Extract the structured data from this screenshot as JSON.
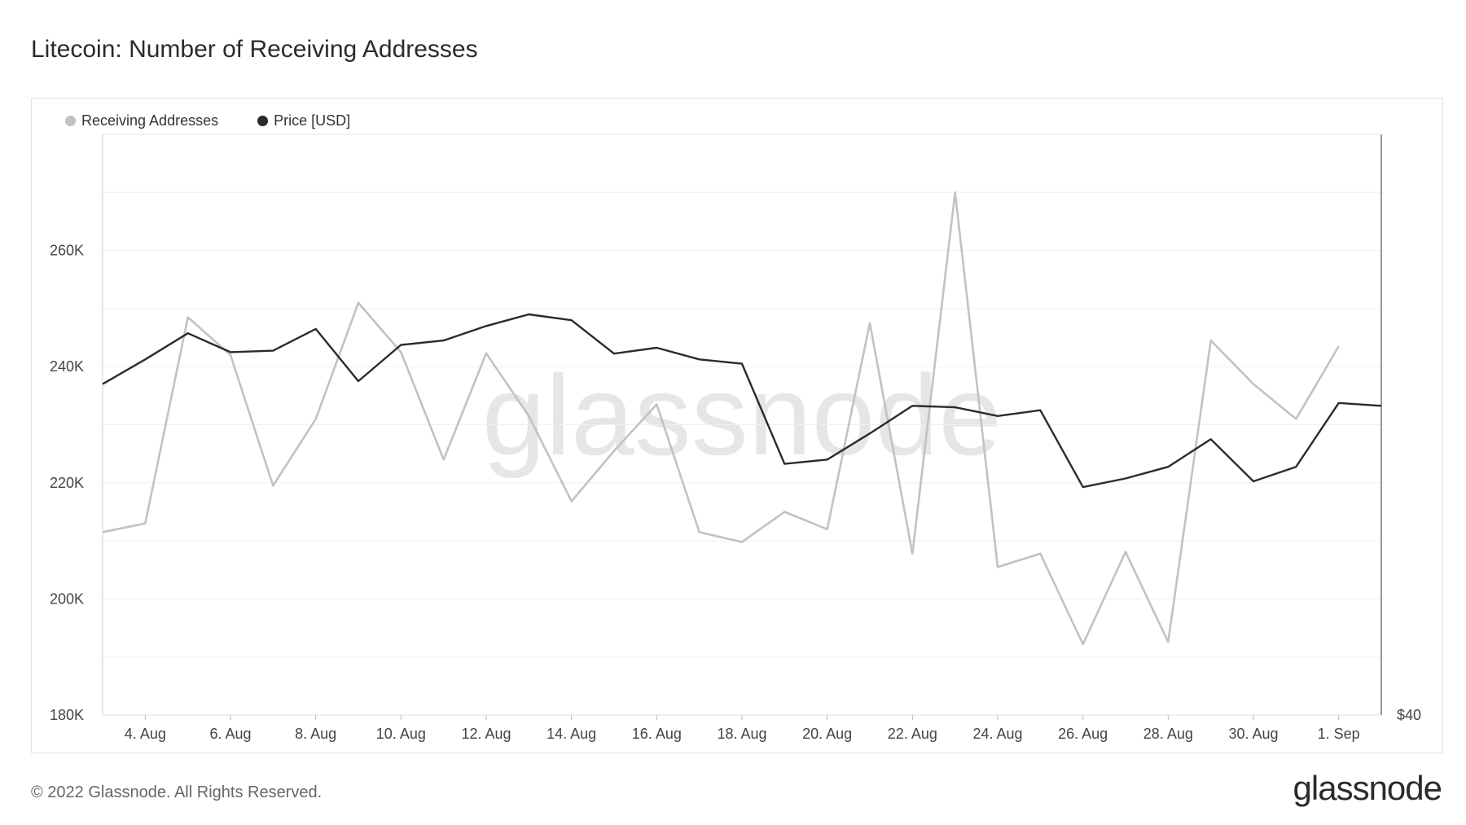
{
  "title": "Litecoin: Number of Receiving Addresses",
  "footer": "© 2022 Glassnode. All Rights Reserved.",
  "logo": "glassnode",
  "watermark": "glassnode",
  "colors": {
    "receiving": "#c2c2c2",
    "price": "#2b2b2b",
    "grid": "#efefef",
    "axis": "#999999"
  },
  "chart_data": {
    "type": "line",
    "title": "Litecoin: Number of Receiving Addresses",
    "x": [
      "3. Aug",
      "4. Aug",
      "5. Aug",
      "6. Aug",
      "7. Aug",
      "8. Aug",
      "9. Aug",
      "10. Aug",
      "11. Aug",
      "12. Aug",
      "13. Aug",
      "14. Aug",
      "15. Aug",
      "16. Aug",
      "17. Aug",
      "18. Aug",
      "19. Aug",
      "20. Aug",
      "21. Aug",
      "22. Aug",
      "23. Aug",
      "24. Aug",
      "25. Aug",
      "26. Aug",
      "27. Aug",
      "28. Aug",
      "29. Aug",
      "30. Aug",
      "31. Aug",
      "1. Sep",
      "2. Sep"
    ],
    "x_tick_labels": [
      "4. Aug",
      "6. Aug",
      "8. Aug",
      "10. Aug",
      "12. Aug",
      "14. Aug",
      "16. Aug",
      "18. Aug",
      "20. Aug",
      "22. Aug",
      "24. Aug",
      "26. Aug",
      "28. Aug",
      "30. Aug",
      "1. Sep"
    ],
    "y_left": {
      "ticks": [
        180000,
        200000,
        220000,
        240000,
        260000
      ],
      "tick_labels": [
        "180K",
        "200K",
        "220K",
        "240K",
        "260K"
      ],
      "ylim": [
        180000,
        280000
      ]
    },
    "y_right": {
      "tick_labels": [
        "$40"
      ],
      "ylim": [
        40,
        80
      ]
    },
    "grid": true,
    "legend_position": "top-left",
    "series": [
      {
        "name": "Receiving Addresses",
        "axis": "left",
        "values": [
          211500,
          213000,
          248500,
          242000,
          219500,
          231000,
          251000,
          242500,
          224000,
          242300,
          231500,
          216800,
          225500,
          233500,
          211500,
          209800,
          215000,
          212000,
          247500,
          207800,
          270000,
          205500,
          207800,
          192200,
          208100,
          192600,
          244500,
          237000,
          231000,
          243500,
          null
        ]
      },
      {
        "name": "Price [USD]",
        "axis": "right",
        "values": [
          62.8,
          64.5,
          66.3,
          65.0,
          65.1,
          66.6,
          63.0,
          65.5,
          65.8,
          66.8,
          67.6,
          67.2,
          64.9,
          65.3,
          64.5,
          64.2,
          57.3,
          57.6,
          59.4,
          61.3,
          61.2,
          60.6,
          61.0,
          55.7,
          56.3,
          57.1,
          59.0,
          56.1,
          57.1,
          61.5,
          61.3
        ]
      }
    ]
  }
}
